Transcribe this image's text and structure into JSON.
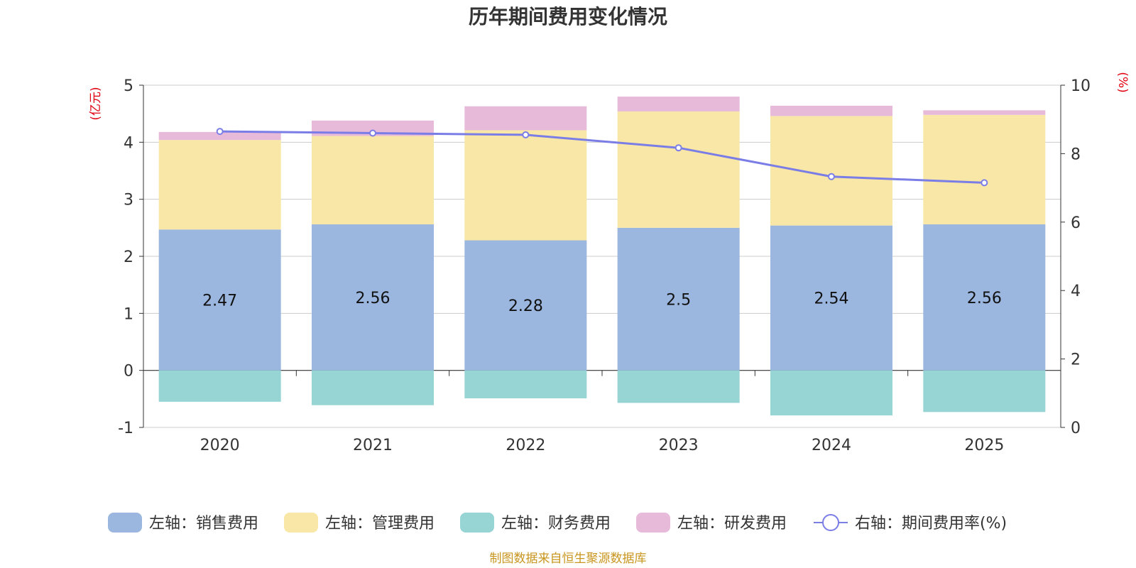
{
  "chart_data": {
    "type": "bar",
    "stacked": true,
    "title": "历年期间费用变化情况",
    "categories": [
      "2020",
      "2021",
      "2022",
      "2023",
      "2024",
      "2025"
    ],
    "left_axis": {
      "unit_label": "(亿元)",
      "ylim": [
        -1,
        5
      ],
      "ticks": [
        "5",
        "4",
        "3",
        "2",
        "1",
        "0",
        "-1"
      ]
    },
    "right_axis": {
      "unit_label": "(%)",
      "ylim": [
        0,
        10
      ],
      "ticks": [
        "10",
        "8",
        "6",
        "4",
        "2",
        "0"
      ]
    },
    "series": [
      {
        "name": "左轴：销售费用",
        "axis": "left",
        "color": "#9bb7e0",
        "values": [
          2.47,
          2.56,
          2.28,
          2.5,
          2.54,
          2.56
        ],
        "data_labels": [
          "2.47",
          "2.56",
          "2.28",
          "2.5",
          "2.54",
          "2.56"
        ]
      },
      {
        "name": "左轴：管理费用",
        "axis": "left",
        "color": "#f8e7a6",
        "values": [
          1.57,
          1.55,
          1.93,
          2.04,
          1.92,
          1.92
        ]
      },
      {
        "name": "左轴：财务费用",
        "axis": "left",
        "color": "#97d4d4",
        "values": [
          -0.55,
          -0.61,
          -0.49,
          -0.57,
          -0.79,
          -0.73
        ]
      },
      {
        "name": "左轴：研发费用",
        "axis": "left",
        "color": "#e8bad9",
        "values": [
          0.14,
          0.27,
          0.42,
          0.26,
          0.18,
          0.08
        ]
      },
      {
        "name": "右轴：期间费用率(%)",
        "axis": "right",
        "type": "line",
        "color": "#7b7de6",
        "values": [
          8.65,
          8.6,
          8.55,
          8.17,
          7.33,
          7.15
        ]
      }
    ],
    "grid": true,
    "legend_position": "bottom"
  },
  "source": "制图数据来自恒生聚源数据库"
}
